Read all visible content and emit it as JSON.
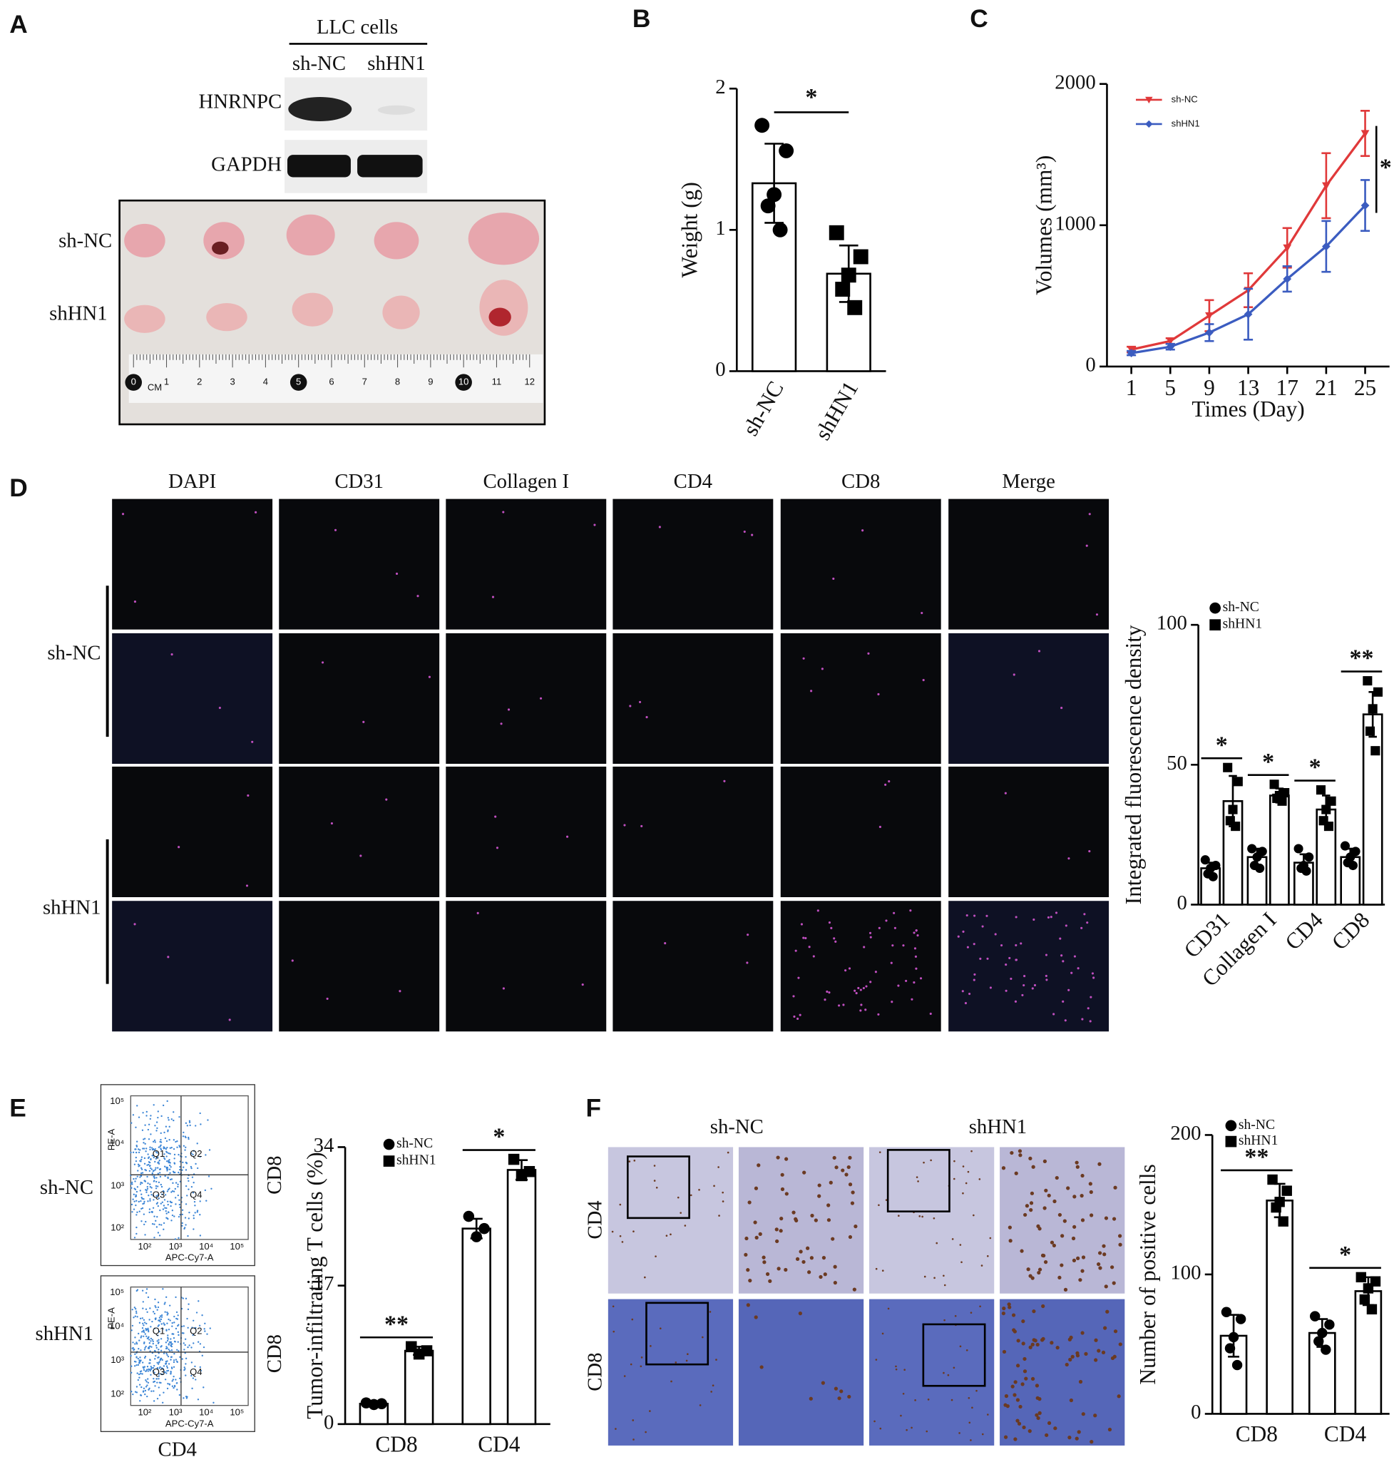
{
  "panel_labels": [
    "A",
    "B",
    "C",
    "D",
    "E",
    "F"
  ],
  "western_blot": {
    "title": "LLC cells",
    "lanes": [
      "sh-NC",
      "shHN1"
    ],
    "rows": [
      "HNRNPC",
      "GAPDH"
    ]
  },
  "tumor_photo": {
    "rows": [
      "sh-NC",
      "shHN1"
    ],
    "ruler_labels": [
      "0",
      "1",
      "2",
      "3",
      "4",
      "5",
      "6",
      "7",
      "8",
      "9",
      "10",
      "11",
      "12"
    ],
    "ruler_unit": "CM"
  },
  "if_images": {
    "columns": [
      "DAPI",
      "CD31",
      "Collagen I",
      "CD4",
      "CD8",
      "Merge"
    ],
    "rows": [
      "sh-NC",
      "shHN1"
    ]
  },
  "flow": {
    "rows": [
      "sh-NC",
      "shHN1"
    ],
    "y_marker": "PE-A",
    "x_marker": "APC-Cy7-A",
    "quadrants": [
      "Q1",
      "Q2",
      "Q3",
      "Q4"
    ],
    "ticks": [
      "10²",
      "10³",
      "10⁴",
      "10⁵"
    ],
    "right_label": "CD8",
    "bottom_label": "CD4"
  },
  "ihc": {
    "columns": [
      "sh-NC",
      "shHN1"
    ],
    "rows": [
      "CD4",
      "CD8"
    ]
  },
  "chart_data": [
    {
      "type": "bar",
      "y_label": "Weight (g)",
      "categories": [
        "sh-NC",
        "shHN1"
      ],
      "values": [
        1.33,
        0.69
      ],
      "errors": [
        0.28,
        0.2
      ],
      "points": [
        [
          1.74,
          1.56,
          1.25,
          1.17,
          1.0
        ],
        [
          0.98,
          0.81,
          0.68,
          0.58,
          0.45
        ]
      ],
      "markers": [
        "circle",
        "square"
      ],
      "ylim": [
        0,
        2
      ],
      "yticks": [
        0,
        1,
        2
      ],
      "significance": "*",
      "xtick_rotation": -60,
      "color": "#000000"
    },
    {
      "type": "line",
      "y_label": "Volumes (mm³)",
      "x_label": "Times (Day)",
      "x": [
        1,
        5,
        9,
        13,
        17,
        21,
        25
      ],
      "xlim": [
        -1.5,
        27.5
      ],
      "xticks": [
        1,
        5,
        9,
        13,
        17,
        21,
        25
      ],
      "ylim": [
        0,
        2000
      ],
      "yticks": [
        0,
        1000,
        2000
      ],
      "series": [
        {
          "name": "sh-NC",
          "color": "#e0393a",
          "marker": "triangle-down",
          "values": [
            120,
            180,
            360,
            540,
            840,
            1280,
            1650
          ],
          "errors": [
            20,
            20,
            110,
            120,
            140,
            230,
            160
          ]
        },
        {
          "name": "shHN1",
          "color": "#3b5cc0",
          "marker": "diamond",
          "values": [
            95,
            140,
            240,
            370,
            620,
            850,
            1140
          ],
          "errors": [
            15,
            20,
            60,
            180,
            90,
            180,
            180
          ]
        }
      ],
      "significance": "*"
    },
    {
      "type": "bar",
      "y_label": "Integrated fluorescence density",
      "categories": [
        "CD31",
        "Collagen I",
        "CD4",
        "CD8"
      ],
      "ylim": [
        0,
        100
      ],
      "yticks": [
        0,
        50,
        100
      ],
      "xtick_rotation": -45,
      "series": [
        {
          "name": "sh-NC",
          "marker": "circle",
          "color": "#000000",
          "values": [
            13,
            17,
            15,
            17
          ],
          "errors": [
            2,
            3,
            3,
            3
          ],
          "points": [
            [
              16,
              14,
              13,
              11,
              10
            ],
            [
              20,
              19,
              17,
              14,
              13
            ],
            [
              20,
              17,
              14,
              13,
              12
            ],
            [
              21,
              19,
              17,
              15,
              14
            ]
          ]
        },
        {
          "name": "shHN1",
          "marker": "square",
          "color": "#000000",
          "values": [
            37,
            39,
            34,
            68
          ],
          "errors": [
            9,
            2.5,
            5,
            8
          ],
          "points": [
            [
              49,
              44,
              34,
              30,
              28
            ],
            [
              43,
              40,
              39,
              38,
              37
            ],
            [
              41,
              37,
              34,
              30,
              28
            ],
            [
              80,
              76,
              70,
              62,
              55
            ]
          ]
        }
      ],
      "significance": [
        "*",
        "*",
        "*",
        "**"
      ]
    },
    {
      "type": "bar",
      "y_label": "Tumor-infiltrating T cells (%)",
      "categories": [
        "CD8",
        "CD4"
      ],
      "ylim": [
        0,
        34
      ],
      "yticks": [
        0,
        17,
        34
      ],
      "series": [
        {
          "name": "sh-NC",
          "marker": "circle",
          "color": "#000000",
          "values": [
            2.5,
            24
          ],
          "errors": [
            0.3,
            1.2
          ],
          "points": [
            [
              2.6,
              2.5,
              2.4
            ],
            [
              25.5,
              24,
              23
            ]
          ]
        },
        {
          "name": "shHN1",
          "marker": "square",
          "color": "#000000",
          "values": [
            9,
            31.2
          ],
          "errors": [
            0.5,
            1.2
          ],
          "points": [
            [
              9.5,
              9.0,
              8.6
            ],
            [
              32.5,
              31,
              30.5
            ]
          ]
        }
      ],
      "significance": [
        "**",
        "*"
      ]
    },
    {
      "type": "bar",
      "y_label": "Number of positive cells",
      "categories": [
        "CD8",
        "CD4"
      ],
      "ylim": [
        0,
        200
      ],
      "yticks": [
        0,
        100,
        200
      ],
      "series": [
        {
          "name": "sh-NC",
          "marker": "circle",
          "color": "#000000",
          "values": [
            56,
            58
          ],
          "errors": [
            15,
            10
          ],
          "points": [
            [
              73,
              68,
              55,
              47,
              35
            ],
            [
              70,
              64,
              58,
              52,
              46
            ]
          ]
        },
        {
          "name": "shHN1",
          "marker": "square",
          "color": "#000000",
          "values": [
            153,
            88
          ],
          "errors": [
            12,
            10
          ],
          "points": [
            [
              168,
              160,
              152,
              148,
              138
            ],
            [
              98,
              95,
              90,
              82,
              75
            ]
          ]
        }
      ],
      "significance": [
        "**",
        "*"
      ]
    }
  ]
}
